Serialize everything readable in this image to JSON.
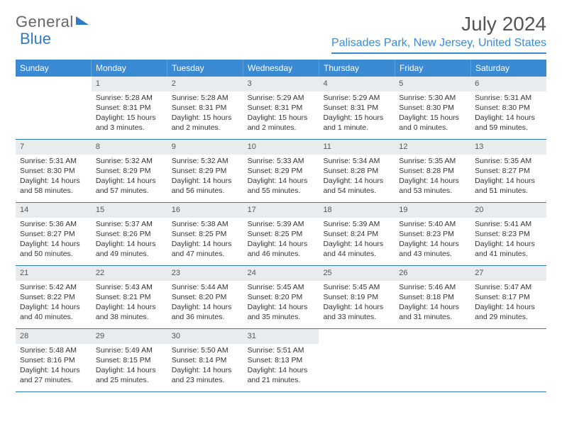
{
  "logo": {
    "text1": "General",
    "text2": "Blue"
  },
  "title": "July 2024",
  "location": "Palisades Park, New Jersey, United States",
  "colors": {
    "header_bar": "#3b8bd4",
    "header_text": "#ffffff",
    "rule": "#2f7cc4",
    "daynum_bg": "#e9ecee",
    "body_text": "#333333",
    "title_text": "#555555"
  },
  "weekdays": [
    "Sunday",
    "Monday",
    "Tuesday",
    "Wednesday",
    "Thursday",
    "Friday",
    "Saturday"
  ],
  "weeks": [
    [
      {
        "n": "",
        "lines": []
      },
      {
        "n": "1",
        "lines": [
          "Sunrise: 5:28 AM",
          "Sunset: 8:31 PM",
          "Daylight: 15 hours",
          "and 3 minutes."
        ]
      },
      {
        "n": "2",
        "lines": [
          "Sunrise: 5:28 AM",
          "Sunset: 8:31 PM",
          "Daylight: 15 hours",
          "and 2 minutes."
        ]
      },
      {
        "n": "3",
        "lines": [
          "Sunrise: 5:29 AM",
          "Sunset: 8:31 PM",
          "Daylight: 15 hours",
          "and 2 minutes."
        ]
      },
      {
        "n": "4",
        "lines": [
          "Sunrise: 5:29 AM",
          "Sunset: 8:31 PM",
          "Daylight: 15 hours",
          "and 1 minute."
        ]
      },
      {
        "n": "5",
        "lines": [
          "Sunrise: 5:30 AM",
          "Sunset: 8:30 PM",
          "Daylight: 15 hours",
          "and 0 minutes."
        ]
      },
      {
        "n": "6",
        "lines": [
          "Sunrise: 5:31 AM",
          "Sunset: 8:30 PM",
          "Daylight: 14 hours",
          "and 59 minutes."
        ]
      }
    ],
    [
      {
        "n": "7",
        "lines": [
          "Sunrise: 5:31 AM",
          "Sunset: 8:30 PM",
          "Daylight: 14 hours",
          "and 58 minutes."
        ]
      },
      {
        "n": "8",
        "lines": [
          "Sunrise: 5:32 AM",
          "Sunset: 8:29 PM",
          "Daylight: 14 hours",
          "and 57 minutes."
        ]
      },
      {
        "n": "9",
        "lines": [
          "Sunrise: 5:32 AM",
          "Sunset: 8:29 PM",
          "Daylight: 14 hours",
          "and 56 minutes."
        ]
      },
      {
        "n": "10",
        "lines": [
          "Sunrise: 5:33 AM",
          "Sunset: 8:29 PM",
          "Daylight: 14 hours",
          "and 55 minutes."
        ]
      },
      {
        "n": "11",
        "lines": [
          "Sunrise: 5:34 AM",
          "Sunset: 8:28 PM",
          "Daylight: 14 hours",
          "and 54 minutes."
        ]
      },
      {
        "n": "12",
        "lines": [
          "Sunrise: 5:35 AM",
          "Sunset: 8:28 PM",
          "Daylight: 14 hours",
          "and 53 minutes."
        ]
      },
      {
        "n": "13",
        "lines": [
          "Sunrise: 5:35 AM",
          "Sunset: 8:27 PM",
          "Daylight: 14 hours",
          "and 51 minutes."
        ]
      }
    ],
    [
      {
        "n": "14",
        "lines": [
          "Sunrise: 5:36 AM",
          "Sunset: 8:27 PM",
          "Daylight: 14 hours",
          "and 50 minutes."
        ]
      },
      {
        "n": "15",
        "lines": [
          "Sunrise: 5:37 AM",
          "Sunset: 8:26 PM",
          "Daylight: 14 hours",
          "and 49 minutes."
        ]
      },
      {
        "n": "16",
        "lines": [
          "Sunrise: 5:38 AM",
          "Sunset: 8:25 PM",
          "Daylight: 14 hours",
          "and 47 minutes."
        ]
      },
      {
        "n": "17",
        "lines": [
          "Sunrise: 5:39 AM",
          "Sunset: 8:25 PM",
          "Daylight: 14 hours",
          "and 46 minutes."
        ]
      },
      {
        "n": "18",
        "lines": [
          "Sunrise: 5:39 AM",
          "Sunset: 8:24 PM",
          "Daylight: 14 hours",
          "and 44 minutes."
        ]
      },
      {
        "n": "19",
        "lines": [
          "Sunrise: 5:40 AM",
          "Sunset: 8:23 PM",
          "Daylight: 14 hours",
          "and 43 minutes."
        ]
      },
      {
        "n": "20",
        "lines": [
          "Sunrise: 5:41 AM",
          "Sunset: 8:23 PM",
          "Daylight: 14 hours",
          "and 41 minutes."
        ]
      }
    ],
    [
      {
        "n": "21",
        "lines": [
          "Sunrise: 5:42 AM",
          "Sunset: 8:22 PM",
          "Daylight: 14 hours",
          "and 40 minutes."
        ]
      },
      {
        "n": "22",
        "lines": [
          "Sunrise: 5:43 AM",
          "Sunset: 8:21 PM",
          "Daylight: 14 hours",
          "and 38 minutes."
        ]
      },
      {
        "n": "23",
        "lines": [
          "Sunrise: 5:44 AM",
          "Sunset: 8:20 PM",
          "Daylight: 14 hours",
          "and 36 minutes."
        ]
      },
      {
        "n": "24",
        "lines": [
          "Sunrise: 5:45 AM",
          "Sunset: 8:20 PM",
          "Daylight: 14 hours",
          "and 35 minutes."
        ]
      },
      {
        "n": "25",
        "lines": [
          "Sunrise: 5:45 AM",
          "Sunset: 8:19 PM",
          "Daylight: 14 hours",
          "and 33 minutes."
        ]
      },
      {
        "n": "26",
        "lines": [
          "Sunrise: 5:46 AM",
          "Sunset: 8:18 PM",
          "Daylight: 14 hours",
          "and 31 minutes."
        ]
      },
      {
        "n": "27",
        "lines": [
          "Sunrise: 5:47 AM",
          "Sunset: 8:17 PM",
          "Daylight: 14 hours",
          "and 29 minutes."
        ]
      }
    ],
    [
      {
        "n": "28",
        "lines": [
          "Sunrise: 5:48 AM",
          "Sunset: 8:16 PM",
          "Daylight: 14 hours",
          "and 27 minutes."
        ]
      },
      {
        "n": "29",
        "lines": [
          "Sunrise: 5:49 AM",
          "Sunset: 8:15 PM",
          "Daylight: 14 hours",
          "and 25 minutes."
        ]
      },
      {
        "n": "30",
        "lines": [
          "Sunrise: 5:50 AM",
          "Sunset: 8:14 PM",
          "Daylight: 14 hours",
          "and 23 minutes."
        ]
      },
      {
        "n": "31",
        "lines": [
          "Sunrise: 5:51 AM",
          "Sunset: 8:13 PM",
          "Daylight: 14 hours",
          "and 21 minutes."
        ]
      },
      {
        "n": "",
        "lines": []
      },
      {
        "n": "",
        "lines": []
      },
      {
        "n": "",
        "lines": []
      }
    ]
  ]
}
